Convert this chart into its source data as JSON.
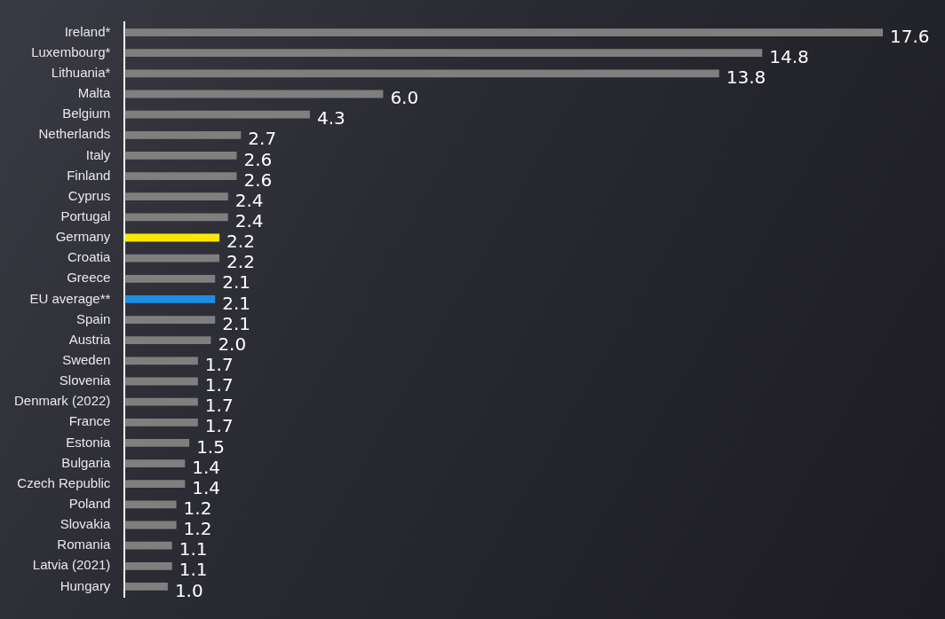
{
  "chart_data": {
    "type": "bar",
    "orientation": "horizontal",
    "categories": [
      "Ireland*",
      "Luxembourg*",
      "Lithuania*",
      "Malta",
      "Belgium",
      "Netherlands",
      "Italy",
      "Finland",
      "Cyprus",
      "Portugal",
      "Germany",
      "Croatia",
      "Greece",
      "EU average**",
      "Spain",
      "Austria",
      "Sweden",
      "Slovenia",
      "Denmark (2022)",
      "France",
      "Estonia",
      "Bulgaria",
      "Czech Republic",
      "Poland",
      "Slovakia",
      "Romania",
      "Latvia (2021)",
      "Hungary"
    ],
    "values": [
      17.6,
      14.8,
      13.8,
      6.0,
      4.3,
      2.7,
      2.6,
      2.6,
      2.4,
      2.4,
      2.2,
      2.2,
      2.1,
      2.1,
      2.1,
      2.0,
      1.7,
      1.7,
      1.7,
      1.7,
      1.5,
      1.4,
      1.4,
      1.2,
      1.2,
      1.1,
      1.1,
      1.0
    ],
    "value_labels": [
      "17.6",
      "14.8",
      "13.8",
      "6.0",
      "4.3",
      "2.7",
      "2.6",
      "2.6",
      "2.4",
      "2.4",
      "2.2",
      "2.2",
      "2.1",
      "2.1",
      "2.1",
      "2.0",
      "1.7",
      "1.7",
      "1.7",
      "1.7",
      "1.5",
      "1.4",
      "1.4",
      "1.2",
      "1.2",
      "1.1",
      "1.1",
      "1.0"
    ],
    "colors": [
      "#7f7f7f",
      "#7f7f7f",
      "#7f7f7f",
      "#7f7f7f",
      "#7f7f7f",
      "#7f7f7f",
      "#7f7f7f",
      "#7f7f7f",
      "#7f7f7f",
      "#7f7f7f",
      "#ffe600",
      "#7f7f7f",
      "#7f7f7f",
      "#1a8fe3",
      "#7f7f7f",
      "#7f7f7f",
      "#7f7f7f",
      "#7f7f7f",
      "#7f7f7f",
      "#7f7f7f",
      "#7f7f7f",
      "#7f7f7f",
      "#7f7f7f",
      "#7f7f7f",
      "#7f7f7f",
      "#7f7f7f",
      "#7f7f7f",
      "#7f7f7f"
    ],
    "grid": false,
    "legend": false
  }
}
